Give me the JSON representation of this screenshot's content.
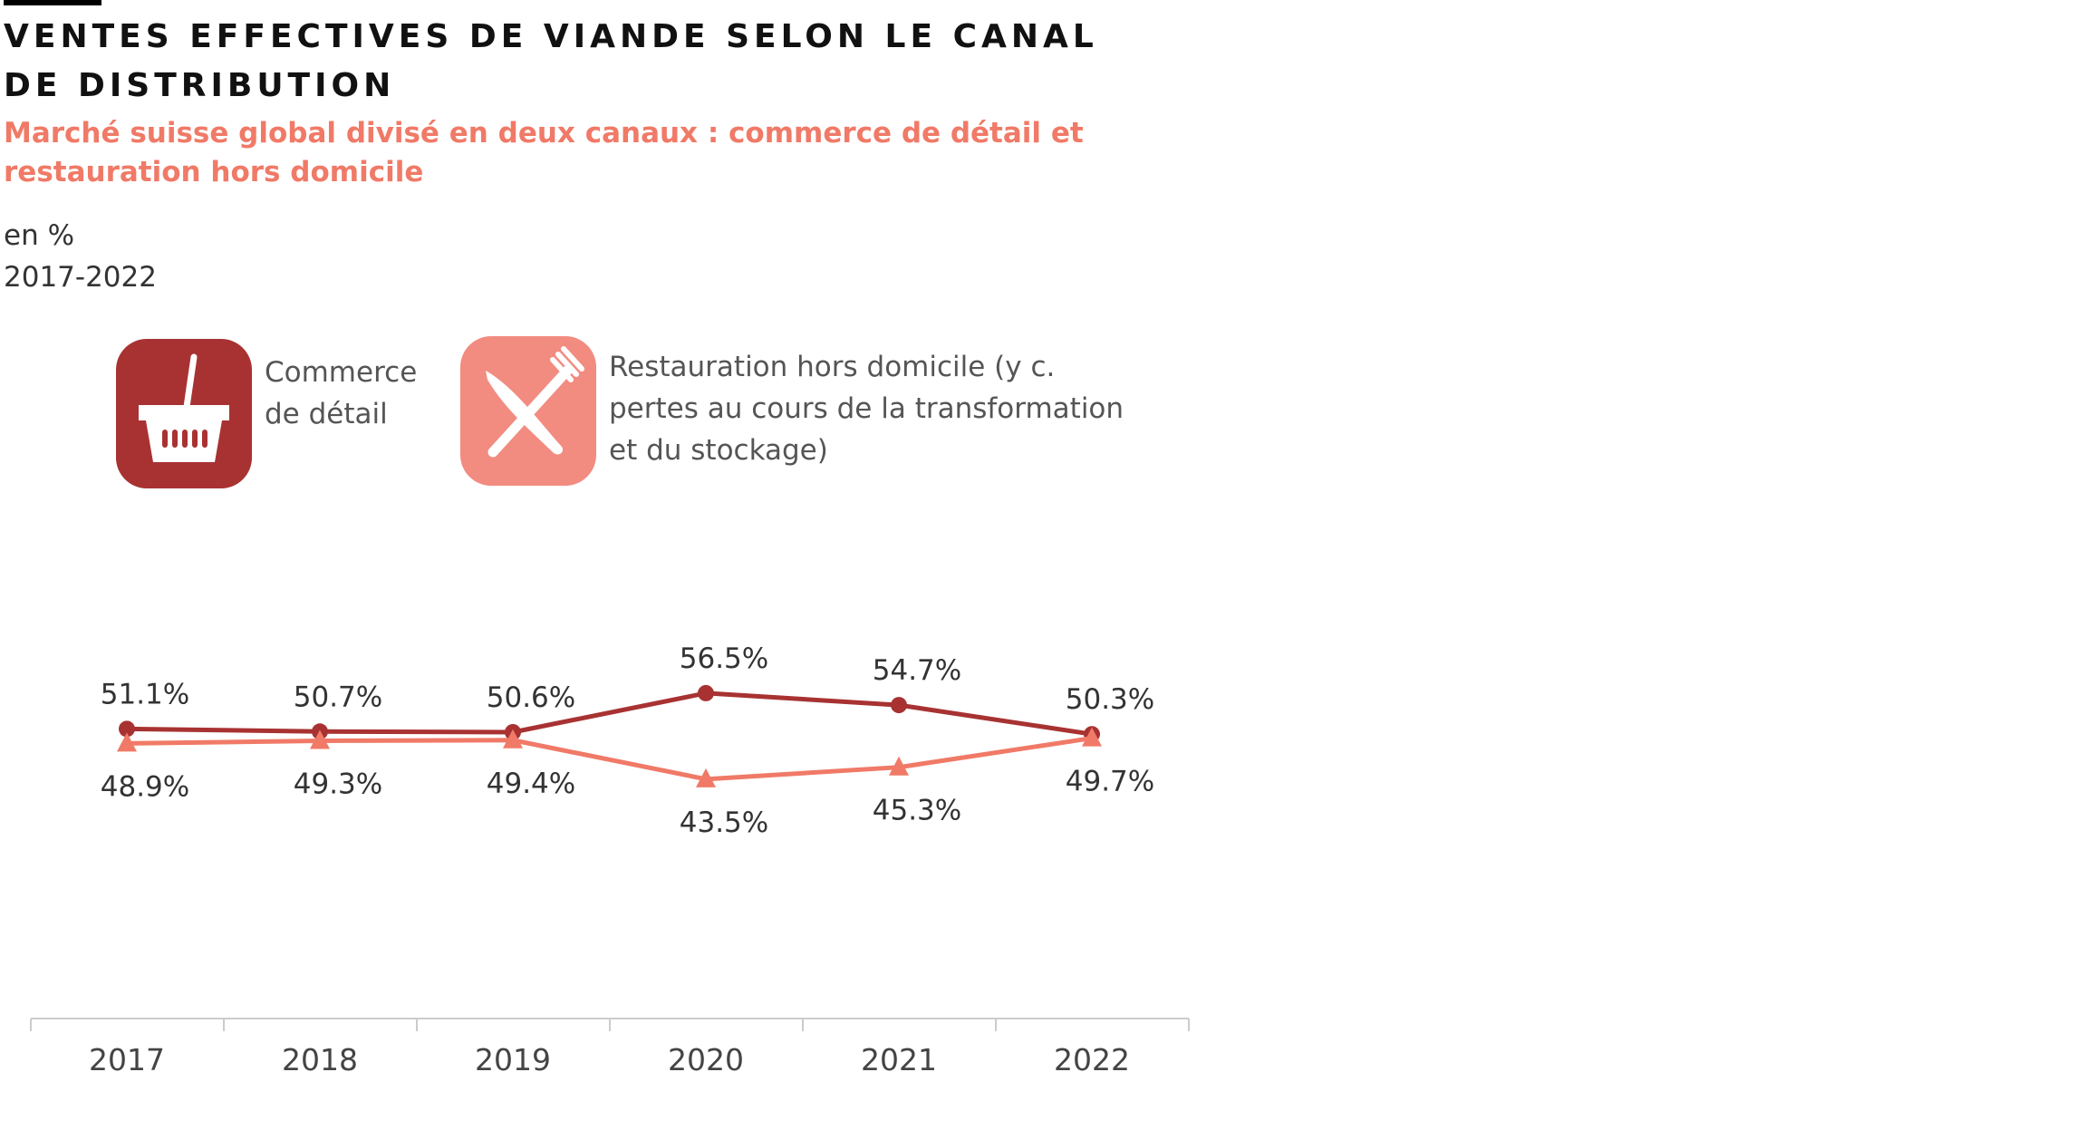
{
  "title": "VENTES EFFECTIVES DE VIANDE SELON LE CANAL DE DISTRIBUTION",
  "subtitle": "Marché suisse global divisé en deux canaux : commerce de détail et restauration hors domicile",
  "unit": "en %",
  "period": "2017-2022",
  "legend": [
    {
      "label": "Commerce de détail",
      "icon": "basket-icon",
      "color": "#a83232"
    },
    {
      "label": "Restauration hors domicile (y c. pertes au cours de la transformation et du stockage)",
      "icon": "fork-knife-icon",
      "color": "#f28b80"
    }
  ],
  "chart_data": {
    "type": "line",
    "categories": [
      "2017",
      "2018",
      "2019",
      "2020",
      "2021",
      "2022"
    ],
    "series": [
      {
        "name": "Commerce de détail",
        "values": [
          51.1,
          50.7,
          50.6,
          56.5,
          54.7,
          50.3
        ],
        "labels": [
          "51.1%",
          "50.7%",
          "50.6%",
          "56.5%",
          "54.7%",
          "50.3%"
        ],
        "color": "#a83232",
        "marker": "circle"
      },
      {
        "name": "Restauration hors domicile (y c. pertes au cours de la transformation et du stockage)",
        "values": [
          48.9,
          49.3,
          49.4,
          43.5,
          45.3,
          49.7
        ],
        "labels": [
          "48.9%",
          "49.3%",
          "49.4%",
          "43.5%",
          "45.3%",
          "49.7%"
        ],
        "color": "#f07a67",
        "marker": "triangle"
      }
    ],
    "grid": false,
    "legend_position": "top"
  }
}
